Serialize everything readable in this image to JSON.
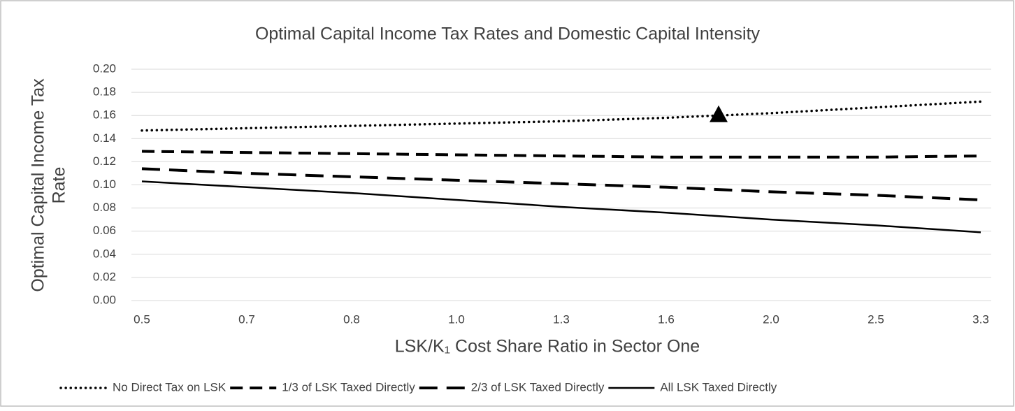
{
  "chart_data": {
    "type": "line",
    "title": "Optimal Capital Income Tax Rates and Domestic Capital Intensity",
    "x_label": "LSK/K₁ Cost Share Ratio in Sector One",
    "y_label": [
      "Optimal Capital Income Tax",
      "Rate"
    ],
    "categories": [
      "0.5",
      "0.7",
      "0.8",
      "1.0",
      "1.3",
      "1.6",
      "2.0",
      "2.5",
      "3.3"
    ],
    "series": [
      {
        "name": "No Direct Tax on LSK",
        "color": "#000000",
        "style": "dotted",
        "values": [
          0.147,
          0.149,
          0.151,
          0.153,
          0.155,
          0.158,
          0.162,
          0.167,
          0.172
        ]
      },
      {
        "name": "1/3 of LSK Taxed Directly",
        "color": "#000000",
        "style": "dashed",
        "values": [
          0.129,
          0.128,
          0.127,
          0.126,
          0.125,
          0.124,
          0.124,
          0.124,
          0.125
        ]
      },
      {
        "name": "2/3 of LSK Taxed Directly",
        "color": "#000000",
        "style": "long-dashed",
        "values": [
          0.114,
          0.11,
          0.107,
          0.104,
          0.101,
          0.098,
          0.094,
          0.091,
          0.087
        ]
      },
      {
        "name": "All LSK Taxed Directly",
        "color": "#000000",
        "style": "solid",
        "values": [
          0.103,
          0.098,
          0.093,
          0.087,
          0.081,
          0.076,
          0.07,
          0.065,
          0.059
        ]
      }
    ],
    "marker": {
      "series": 0,
      "value": 0.16,
      "shape": "triangle",
      "color": "#000000"
    },
    "ylim": [
      0,
      0.2
    ],
    "yticks": [
      {
        "value": 0,
        "label": "0.00"
      },
      {
        "value": 0.02,
        "label": "0.02"
      },
      {
        "value": 0.04,
        "label": "0.04"
      },
      {
        "value": 0.06,
        "label": "0.06"
      },
      {
        "value": 0.08,
        "label": "0.08"
      },
      {
        "value": 0.1,
        "label": "0.10"
      },
      {
        "value": 0.12,
        "label": "0.12"
      },
      {
        "value": 0.14,
        "label": "0.14"
      },
      {
        "value": 0.16,
        "label": "0.16"
      },
      {
        "value": 0.18,
        "label": "0.18"
      },
      {
        "value": 0.2,
        "label": "0.20"
      }
    ],
    "grid": true,
    "legend": "bottom"
  }
}
